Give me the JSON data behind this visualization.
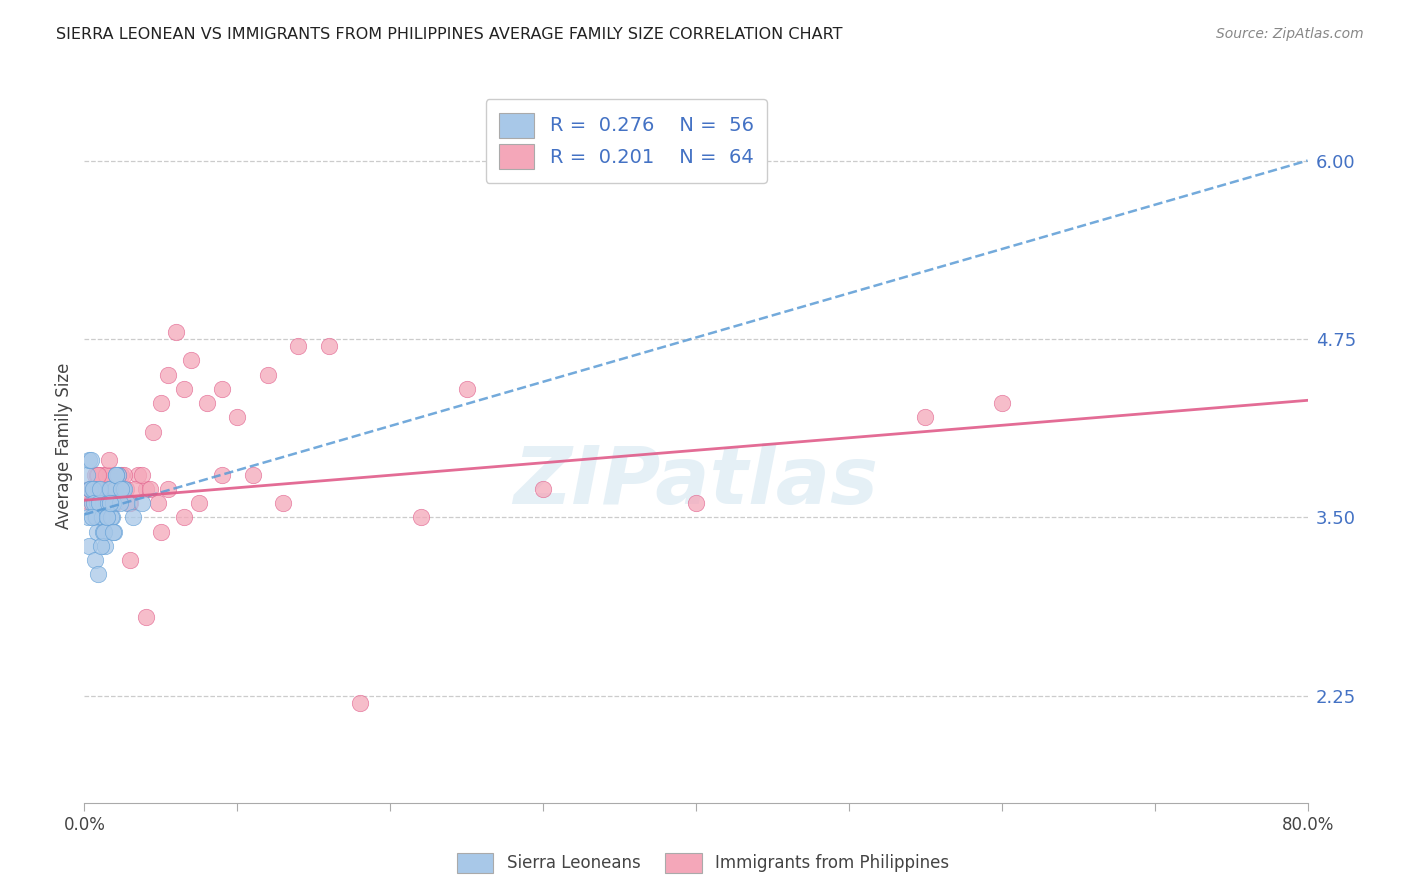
{
  "title": "SIERRA LEONEAN VS IMMIGRANTS FROM PHILIPPINES AVERAGE FAMILY SIZE CORRELATION CHART",
  "source": "Source: ZipAtlas.com",
  "ylabel": "Average Family Size",
  "legend1_r": "0.276",
  "legend1_n": "56",
  "legend2_r": "0.201",
  "legend2_n": "64",
  "legend_bottom1": "Sierra Leoneans",
  "legend_bottom2": "Immigrants from Philippines",
  "ytick_labels": [
    "2.25",
    "3.50",
    "4.75",
    "6.00"
  ],
  "ytick_values": [
    2.25,
    3.5,
    4.75,
    6.0
  ],
  "xmin": 0.0,
  "xmax": 80.0,
  "ymin": 1.5,
  "ymax": 6.5,
  "color_blue": "#a8c8e8",
  "color_blue_dark": "#5b9bd5",
  "color_pink": "#f4a7b9",
  "color_pink_dark": "#e05c8a",
  "color_axis_right": "#4472c4",
  "color_legend_value": "#4472c4",
  "color_legend_label": "#333333",
  "blue_line_start_y": 3.52,
  "blue_line_end_y": 6.0,
  "pink_line_start_y": 3.62,
  "pink_line_end_y": 4.32,
  "sierra_x": [
    0.2,
    0.3,
    0.4,
    0.5,
    0.6,
    0.7,
    0.8,
    0.9,
    1.0,
    1.1,
    1.2,
    1.3,
    1.4,
    1.5,
    1.6,
    1.7,
    1.8,
    1.9,
    2.0,
    2.2,
    2.5,
    2.8,
    3.2,
    3.8,
    0.25,
    0.35,
    0.45,
    0.55,
    0.65,
    0.75,
    0.85,
    0.95,
    1.05,
    1.15,
    1.25,
    1.35,
    1.45,
    1.55,
    1.65,
    1.75,
    1.85,
    1.95,
    2.1,
    2.3,
    2.6,
    0.3,
    0.5,
    0.7,
    0.9,
    1.1,
    1.3,
    1.5,
    1.7,
    1.9,
    2.1,
    2.4
  ],
  "sierra_y": [
    3.8,
    3.9,
    3.7,
    3.6,
    3.7,
    3.5,
    3.6,
    3.7,
    3.6,
    3.5,
    3.6,
    3.5,
    3.6,
    3.5,
    3.7,
    3.6,
    3.5,
    3.6,
    3.7,
    3.8,
    3.7,
    3.6,
    3.5,
    3.6,
    3.5,
    3.7,
    3.9,
    3.7,
    3.6,
    3.5,
    3.4,
    3.6,
    3.7,
    3.5,
    3.4,
    3.3,
    3.5,
    3.6,
    3.7,
    3.5,
    3.6,
    3.4,
    3.8,
    3.6,
    3.7,
    3.3,
    3.5,
    3.2,
    3.1,
    3.3,
    3.4,
    3.5,
    3.6,
    3.4,
    3.8,
    3.7
  ],
  "phil_x": [
    0.3,
    0.5,
    0.7,
    0.9,
    1.1,
    1.3,
    1.5,
    1.7,
    1.9,
    2.1,
    2.4,
    2.7,
    3.0,
    3.5,
    4.0,
    4.5,
    5.0,
    5.5,
    6.0,
    7.0,
    8.0,
    9.0,
    10.0,
    12.0,
    14.0,
    0.4,
    0.6,
    0.8,
    1.0,
    1.2,
    1.4,
    1.6,
    1.8,
    2.0,
    2.3,
    2.6,
    2.9,
    3.3,
    3.8,
    4.3,
    4.8,
    5.5,
    6.5,
    7.5,
    11.0,
    16.0,
    22.0,
    30.0,
    40.0,
    55.0,
    0.5,
    0.9,
    1.3,
    1.7,
    2.2,
    3.0,
    4.0,
    5.0,
    6.5,
    9.0,
    13.0,
    18.0,
    25.0,
    60.0
  ],
  "phil_y": [
    3.7,
    3.6,
    3.8,
    3.7,
    3.8,
    3.6,
    3.7,
    3.8,
    3.6,
    3.7,
    3.8,
    3.7,
    3.6,
    3.8,
    3.7,
    4.1,
    4.3,
    4.5,
    4.8,
    4.6,
    4.3,
    4.4,
    4.2,
    4.5,
    4.7,
    3.6,
    3.7,
    3.8,
    3.6,
    3.7,
    3.8,
    3.9,
    3.7,
    3.6,
    3.7,
    3.8,
    3.6,
    3.7,
    3.8,
    3.7,
    3.6,
    3.7,
    3.5,
    3.6,
    3.8,
    4.7,
    3.5,
    3.7,
    3.6,
    4.2,
    3.7,
    3.8,
    3.6,
    3.7,
    3.8,
    3.2,
    2.8,
    3.4,
    4.4,
    3.8,
    3.6,
    2.2,
    4.4,
    4.3
  ]
}
